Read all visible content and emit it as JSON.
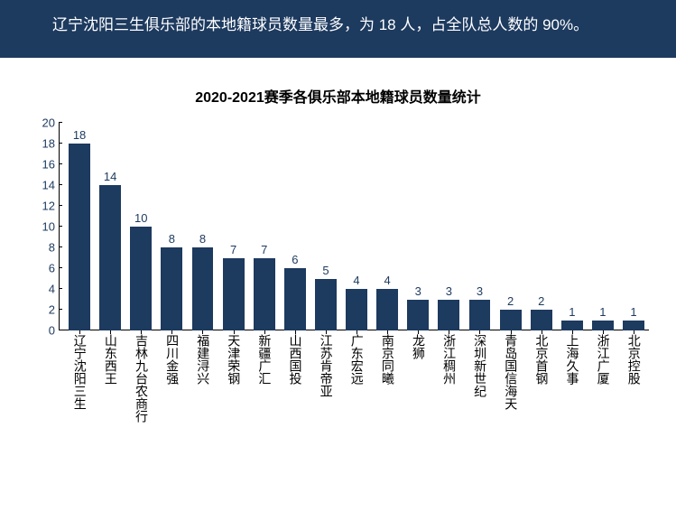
{
  "header": {
    "text": "辽宁沈阳三生俱乐部的本地籍球员数量最多，为 18 人，占全队总人数的 90%。",
    "bg_color": "#1d3a5f",
    "text_color": "#ffffff",
    "font_size": 17
  },
  "chart": {
    "type": "bar",
    "title": "2020-2021赛季各俱乐部本地籍球员数量统计",
    "title_fontsize": 16,
    "title_color": "#000000",
    "bar_color": "#1d3a5f",
    "value_label_color": "#1d3a5f",
    "axis_label_color": "#1d3a5f",
    "x_label_color": "#000000",
    "ylim": [
      0,
      20
    ],
    "yticks": [
      0,
      2,
      4,
      6,
      8,
      10,
      12,
      14,
      16,
      18,
      20
    ],
    "categories": [
      "辽宁沈阳三生",
      "山东西王",
      "吉林九台农商行",
      "四川金强",
      "福建浔兴",
      "天津荣钢",
      "新疆广汇",
      "山西国投",
      "江苏肯帝亚",
      "广东宏远",
      "南京同曦",
      "龙狮",
      "浙江稠州",
      "深圳新世纪",
      "青岛国信海天",
      "北京首钢",
      "上海久事",
      "浙江广厦",
      "北京控股"
    ],
    "values": [
      18,
      14,
      10,
      8,
      8,
      7,
      7,
      6,
      5,
      4,
      4,
      3,
      3,
      3,
      2,
      2,
      1,
      1,
      1
    ]
  }
}
